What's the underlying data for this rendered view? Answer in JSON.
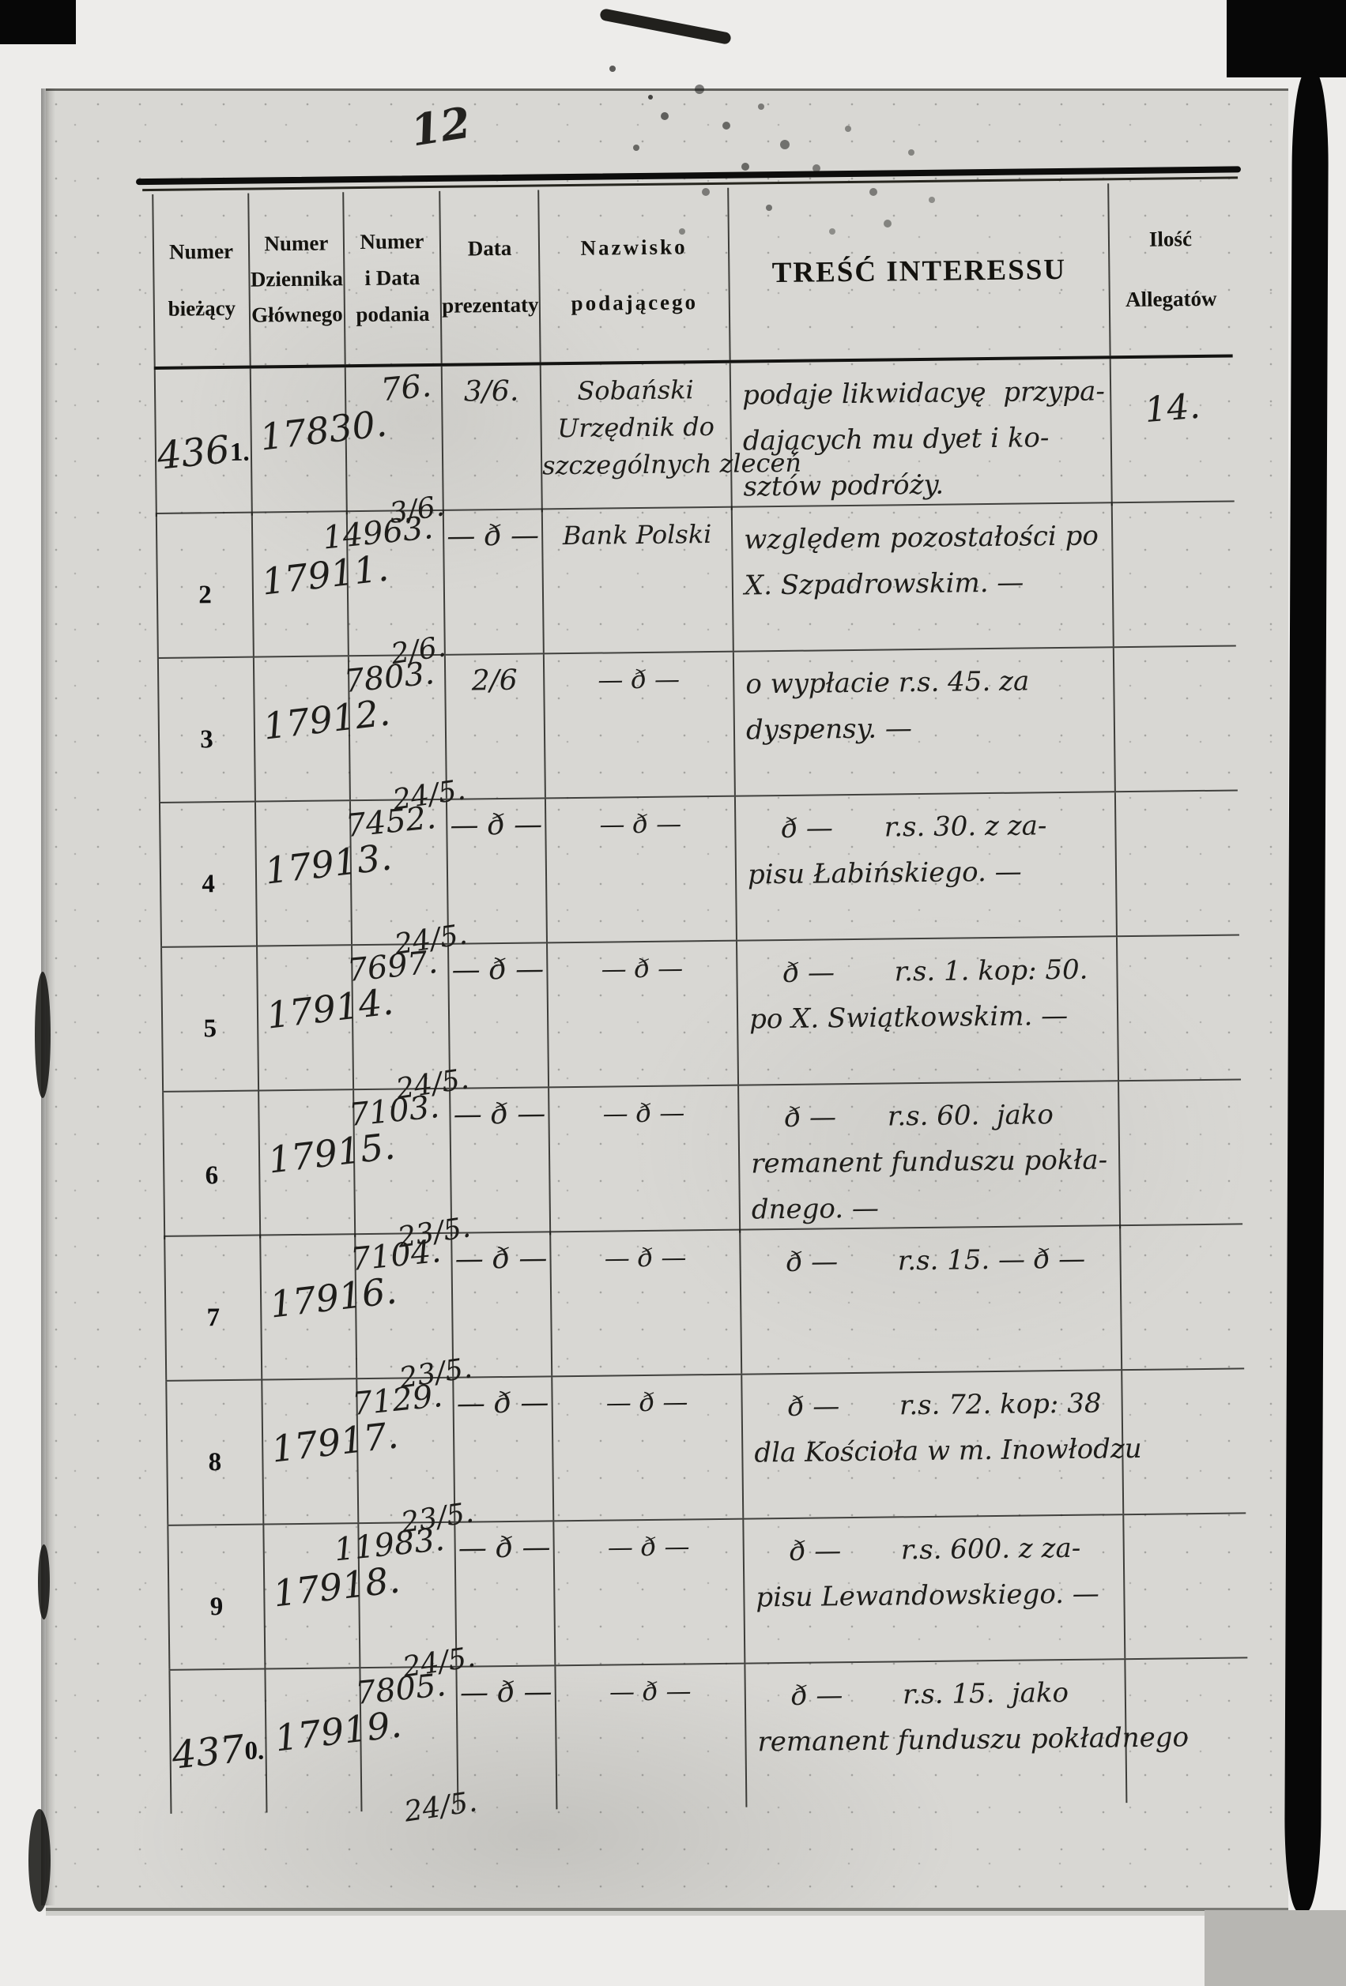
{
  "page": {
    "corner_note": "12",
    "table": {
      "headers": [
        {
          "lines": [
            "Numer",
            "bieżący"
          ]
        },
        {
          "lines": [
            "Numer",
            "Dziennika",
            "Głównego"
          ]
        },
        {
          "lines": [
            "Numer",
            "i Data",
            "podania"
          ]
        },
        {
          "lines": [
            "Data",
            "prezentaty"
          ]
        },
        {
          "lines": [
            "Nazwisko",
            "podającego"
          ]
        },
        {
          "lines": [
            "TREŚĆ INTERESSU"
          ]
        },
        {
          "lines": [
            "Ilość",
            "Allegatów"
          ]
        }
      ],
      "rows": [
        {
          "numer_biezacy_hand": "436",
          "numer_biezacy_print": "1.",
          "numer_dziennika": "17830.",
          "numer_podania": "76.",
          "data_podania": "3/6.",
          "data_prezentaty": "3/6.",
          "nazwisko": [
            "Sobański",
            "Urzędnik do",
            "szczególnych zleceń"
          ],
          "tresc": [
            "podaje likwidacyę  przypa-",
            "dających mu dyet i ko-",
            "sztów podróży."
          ],
          "allegatow": "14."
        },
        {
          "numer_biezacy_hand": "",
          "numer_biezacy_print": "2",
          "numer_dziennika": "17911.",
          "numer_podania": "14963.",
          "data_podania": "2/6.",
          "data_prezentaty": "— ð —",
          "nazwisko": [
            "Bank Polski"
          ],
          "tresc": [
            "względem pozostałości po",
            "X. Szpadrowskim. —"
          ],
          "allegatow": ""
        },
        {
          "numer_biezacy_hand": "",
          "numer_biezacy_print": "3",
          "numer_dziennika": "17912.",
          "numer_podania": "7803.",
          "data_podania": "24/5.",
          "data_prezentaty": "2/6",
          "nazwisko": [
            "— ð —"
          ],
          "tresc": [
            "o wypłacie r.s. 45. za",
            "dyspensy. —"
          ],
          "allegatow": ""
        },
        {
          "numer_biezacy_hand": "",
          "numer_biezacy_print": "4",
          "numer_dziennika": "17913.",
          "numer_podania": "7452.",
          "data_podania": "24/5.",
          "data_prezentaty": "— ð —",
          "nazwisko": [
            "— ð —"
          ],
          "tresc": [
            "    ð —      r.s. 30. z za-",
            "pisu Łabińskiego. —"
          ],
          "allegatow": ""
        },
        {
          "numer_biezacy_hand": "",
          "numer_biezacy_print": "5",
          "numer_dziennika": "17914.",
          "numer_podania": "7697.",
          "data_podania": "24/5.",
          "data_prezentaty": "— ð —",
          "nazwisko": [
            "— ð —"
          ],
          "tresc": [
            "    ð —       r.s. 1. kop: 50.",
            "po X. Swiątkowskim. —"
          ],
          "allegatow": ""
        },
        {
          "numer_biezacy_hand": "",
          "numer_biezacy_print": "6",
          "numer_dziennika": "17915.",
          "numer_podania": "7103.",
          "data_podania": "23/5.",
          "data_prezentaty": "— ð —",
          "nazwisko": [
            "— ð —"
          ],
          "tresc": [
            "    ð —      r.s. 60.  jako",
            "remanent funduszu pokła-",
            "dnego. —"
          ],
          "allegatow": ""
        },
        {
          "numer_biezacy_hand": "",
          "numer_biezacy_print": "7",
          "numer_dziennika": "17916.",
          "numer_podania": "7104.",
          "data_podania": "23/5.",
          "data_prezentaty": "— ð —",
          "nazwisko": [
            "— ð —"
          ],
          "tresc": [
            "    ð —       r.s. 15. — ð —"
          ],
          "allegatow": ""
        },
        {
          "numer_biezacy_hand": "",
          "numer_biezacy_print": "8",
          "numer_dziennika": "17917.",
          "numer_podania": "7129.",
          "data_podania": "23/5.",
          "data_prezentaty": "— ð —",
          "nazwisko": [
            "— ð —"
          ],
          "tresc": [
            "    ð —       r.s. 72. kop: 38",
            "dla Kościoła w m. Inowłodzu"
          ],
          "allegatow": ""
        },
        {
          "numer_biezacy_hand": "",
          "numer_biezacy_print": "9",
          "numer_dziennika": "17918.",
          "numer_podania": "11983.",
          "data_podania": "24/5.",
          "data_prezentaty": "— ð —",
          "nazwisko": [
            "— ð —"
          ],
          "tresc": [
            "    ð —       r.s. 600. z za-",
            "pisu Lewandowskiego. —"
          ],
          "allegatow": ""
        },
        {
          "numer_biezacy_hand": "437",
          "numer_biezacy_print": "0.",
          "numer_dziennika": "17919.",
          "numer_podania": "7805.",
          "data_podania": "24/5.",
          "data_prezentaty": "— ð —",
          "nazwisko": [
            "— ð —"
          ],
          "tresc": [
            "    ð —       r.s. 15.  jako",
            "remanent funduszu pokładnego"
          ],
          "allegatow": ""
        }
      ]
    }
  }
}
